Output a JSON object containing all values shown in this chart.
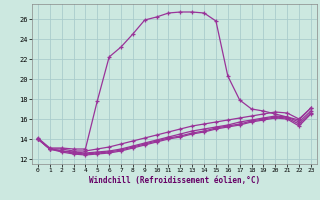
{
  "title": "",
  "xlabel": "Windchill (Refroidissement éolien,°C)",
  "ylabel": "",
  "bg_color": "#cce8e0",
  "grid_color": "#aacccc",
  "line_color": "#993399",
  "xlim": [
    -0.5,
    23.5
  ],
  "ylim": [
    11.5,
    27.5
  ],
  "yticks": [
    12,
    14,
    16,
    18,
    20,
    22,
    24,
    26
  ],
  "xticks": [
    0,
    1,
    2,
    3,
    4,
    5,
    6,
    7,
    8,
    9,
    10,
    11,
    12,
    13,
    14,
    15,
    16,
    17,
    18,
    19,
    20,
    21,
    22,
    23
  ],
  "curve1_x": [
    0,
    1,
    2,
    3,
    4,
    5,
    6,
    7,
    8,
    9,
    10,
    11,
    12,
    13,
    14,
    15,
    16,
    17,
    18,
    19,
    20,
    21,
    22,
    23
  ],
  "curve1_y": [
    14.1,
    13.1,
    13.1,
    13.0,
    13.0,
    17.8,
    22.2,
    23.2,
    24.5,
    25.9,
    26.2,
    26.6,
    26.7,
    26.7,
    26.6,
    25.8,
    20.3,
    17.9,
    17.0,
    16.8,
    16.5,
    16.2,
    15.9,
    17.1
  ],
  "curve2_x": [
    0,
    1,
    2,
    3,
    4,
    5,
    6,
    7,
    8,
    9,
    10,
    11,
    12,
    13,
    14,
    15,
    16,
    17,
    18,
    19,
    20,
    21,
    22,
    23
  ],
  "curve2_y": [
    14.0,
    13.0,
    13.0,
    12.8,
    12.8,
    13.0,
    13.2,
    13.5,
    13.8,
    14.1,
    14.4,
    14.7,
    15.0,
    15.3,
    15.5,
    15.7,
    15.9,
    16.1,
    16.3,
    16.5,
    16.7,
    16.6,
    16.0,
    17.1
  ],
  "curve3_x": [
    0,
    1,
    2,
    3,
    4,
    5,
    6,
    7,
    8,
    9,
    10,
    11,
    12,
    13,
    14,
    15,
    16,
    17,
    18,
    19,
    20,
    21,
    22,
    23
  ],
  "curve3_y": [
    14.0,
    13.0,
    12.8,
    12.7,
    12.6,
    12.7,
    12.8,
    13.0,
    13.3,
    13.6,
    13.9,
    14.2,
    14.5,
    14.8,
    15.0,
    15.2,
    15.4,
    15.7,
    15.9,
    16.1,
    16.3,
    16.2,
    15.7,
    16.8
  ],
  "curve4_x": [
    0,
    1,
    2,
    3,
    4,
    5,
    6,
    7,
    8,
    9,
    10,
    11,
    12,
    13,
    14,
    15,
    16,
    17,
    18,
    19,
    20,
    21,
    22,
    23
  ],
  "curve4_y": [
    14.0,
    13.0,
    12.8,
    12.6,
    12.5,
    12.6,
    12.7,
    12.9,
    13.2,
    13.5,
    13.8,
    14.1,
    14.3,
    14.6,
    14.8,
    15.1,
    15.3,
    15.5,
    15.8,
    16.0,
    16.2,
    16.1,
    15.5,
    16.6
  ],
  "curve5_x": [
    0,
    1,
    2,
    3,
    4,
    5,
    6,
    7,
    8,
    9,
    10,
    11,
    12,
    13,
    14,
    15,
    16,
    17,
    18,
    19,
    20,
    21,
    22,
    23
  ],
  "curve5_y": [
    14.0,
    13.0,
    12.7,
    12.5,
    12.4,
    12.5,
    12.6,
    12.8,
    13.1,
    13.4,
    13.7,
    14.0,
    14.2,
    14.5,
    14.7,
    15.0,
    15.2,
    15.4,
    15.7,
    15.9,
    16.1,
    16.0,
    15.3,
    16.5
  ]
}
